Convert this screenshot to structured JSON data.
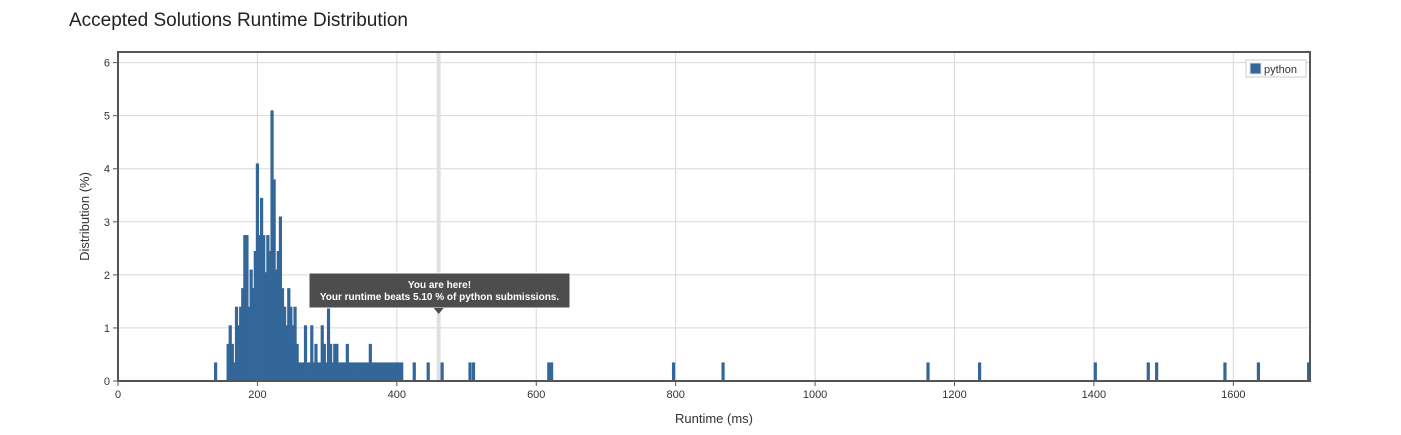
{
  "page": {
    "title": "Accepted Solutions Runtime Distribution"
  },
  "chart_data": {
    "type": "bar",
    "title": "Accepted Solutions Runtime Distribution",
    "xlabel": "Runtime (ms)",
    "ylabel": "Distribution (%)",
    "xlim": [
      0,
      1710
    ],
    "ylim": [
      0,
      6.2
    ],
    "xticks": [
      0,
      200,
      400,
      600,
      800,
      1000,
      1200,
      1400,
      1600
    ],
    "yticks": [
      0,
      1,
      2,
      3,
      4,
      5,
      6
    ],
    "grid": true,
    "bar_color": "#336699",
    "legend": {
      "position": "top-right",
      "entries": [
        "python"
      ]
    },
    "marker": {
      "x": 460,
      "color": "#e0e0e0"
    },
    "tooltip": {
      "line1": "You are here!",
      "line2": "Your runtime beats 5.10 % of python submissions."
    },
    "series": [
      {
        "name": "python",
        "x": [
          140,
          158,
          161,
          164,
          167,
          170,
          173,
          176,
          179,
          182,
          185,
          188,
          191,
          194,
          197,
          200,
          203,
          206,
          209,
          212,
          215,
          218,
          221,
          224,
          227,
          230,
          233,
          236,
          239,
          242,
          245,
          248,
          251,
          254,
          257,
          260,
          263,
          266,
          269,
          272,
          275,
          278,
          281,
          284,
          287,
          290,
          293,
          296,
          299,
          302,
          305,
          308,
          311,
          314,
          317,
          320,
          323,
          326,
          329,
          332,
          335,
          338,
          341,
          344,
          347,
          350,
          353,
          356,
          359,
          362,
          365,
          368,
          371,
          374,
          377,
          380,
          383,
          386,
          389,
          392,
          395,
          398,
          401,
          404,
          407,
          425,
          445,
          465,
          505,
          510,
          618,
          622,
          797,
          868,
          1162,
          1236,
          1402,
          1478,
          1490,
          1588,
          1636,
          1708
        ],
        "values": [
          0.35,
          0.7,
          1.05,
          0.7,
          0.35,
          1.4,
          1.05,
          1.4,
          1.75,
          2.75,
          2.75,
          1.4,
          2.1,
          1.75,
          2.45,
          4.1,
          2.75,
          3.45,
          2.75,
          2.05,
          2.75,
          2.45,
          5.1,
          3.8,
          2.1,
          2.45,
          3.1,
          1.75,
          1.4,
          1.05,
          1.75,
          1.4,
          1.05,
          1.4,
          0.7,
          0.35,
          0.35,
          0.35,
          1.05,
          0.35,
          0.35,
          1.05,
          0.35,
          0.7,
          0.35,
          0.35,
          1.05,
          0.7,
          0.35,
          1.4,
          0.7,
          0.35,
          0.7,
          0.7,
          0.35,
          0.35,
          0.35,
          0.35,
          0.7,
          0.35,
          0.35,
          0.35,
          0.35,
          0.35,
          0.35,
          0.35,
          0.35,
          0.35,
          0.35,
          0.7,
          0.35,
          0.35,
          0.35,
          0.35,
          0.35,
          0.35,
          0.35,
          0.35,
          0.35,
          0.35,
          0.35,
          0.35,
          0.35,
          0.35,
          0.35,
          0.35,
          0.35,
          0.35,
          0.35,
          0.35,
          0.35,
          0.35,
          0.35,
          0.35,
          0.35,
          0.35,
          0.35,
          0.35,
          0.35,
          0.35,
          0.35,
          0.35
        ]
      }
    ]
  }
}
